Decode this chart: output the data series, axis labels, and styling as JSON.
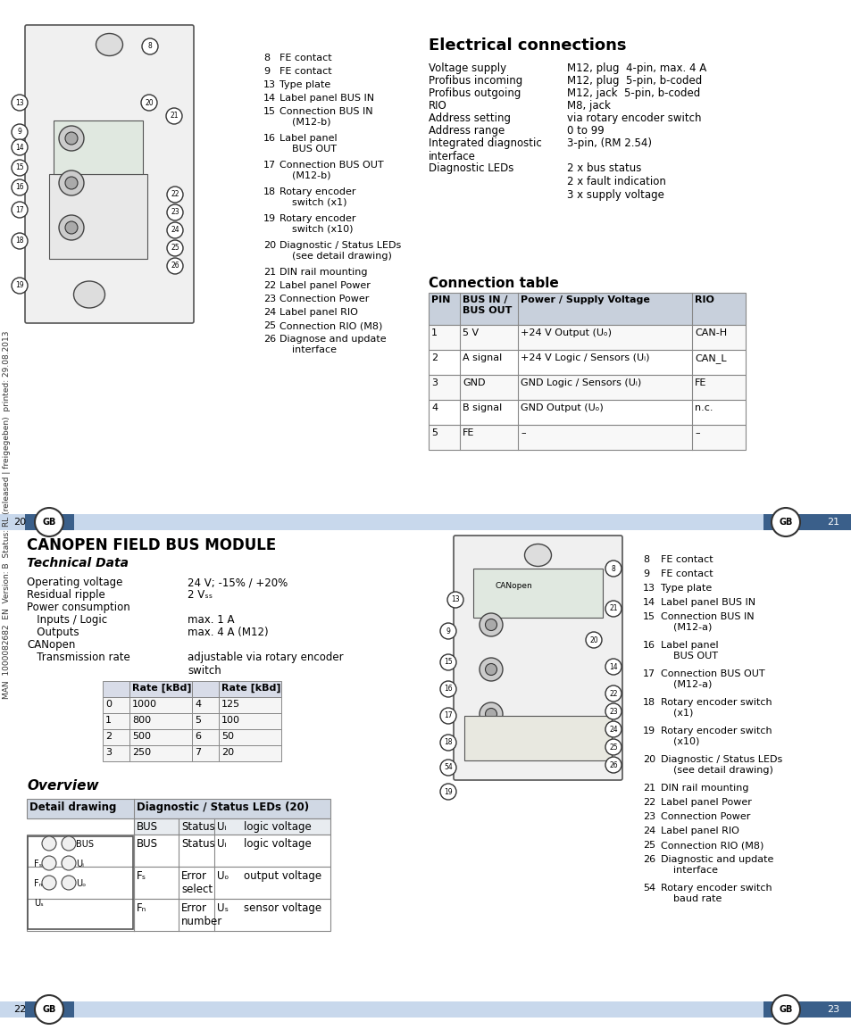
{
  "page_bg": "#ffffff",
  "divider_color": "#b8c8e0",
  "divider_dark": "#4a6fa5",
  "text_color": "#000000",
  "table_header_bg": "#d0d8e8",
  "table_bg": "#ffffff",
  "table_border": "#888888",
  "title_top": "Electrical connections",
  "elec_rows": [
    [
      "Voltage supply",
      "M12, plug  4-pin, max. 4 A"
    ],
    [
      "Profibus incoming",
      "M12, plug  5-pin, b-coded"
    ],
    [
      "Profibus outgoing",
      "M12, jack  5-pin, b-coded"
    ],
    [
      "RIO",
      "M8, jack"
    ],
    [
      "Address setting",
      "via rotary encoder switch"
    ],
    [
      "Address range",
      "0 to 99"
    ],
    [
      "Integrated diagnostic\ninterface",
      "3-pin, (RM 2.54)"
    ],
    [
      "Diagnostic LEDs",
      "2 x bus status\n2 x fault indication\n3 x supply voltage"
    ]
  ],
  "conn_title": "Connection table",
  "conn_headers": [
    "PIN",
    "BUS IN /\nBUS OUT",
    "Power / Supply Voltage",
    "RIO"
  ],
  "conn_rows": [
    [
      "1",
      "5 V",
      "+24 V Output (Uₒ)",
      "CAN-H"
    ],
    [
      "2",
      "A signal",
      "+24 V Logic / Sensors (Uᵢ)",
      "CAN_L"
    ],
    [
      "3",
      "GND",
      "GND Logic / Sensors (Uᵢ)",
      "FE"
    ],
    [
      "4",
      "B signal",
      "GND Output (Uₒ)",
      "n.c."
    ],
    [
      "5",
      "FE",
      "–",
      "–"
    ]
  ],
  "page_nums_top": [
    "20",
    "21"
  ],
  "canopen_title": "CANOPEN FIELD BUS MODULE",
  "tech_title": "Technical Data",
  "tech_rows": [
    [
      "Operating voltage",
      "24 V; -15% / +20%"
    ],
    [
      "Residual ripple",
      "2 Vₛₛ"
    ],
    [
      "Power consumption",
      ""
    ],
    [
      "   Inputs / Logic",
      "max. 1 A"
    ],
    [
      "   Outputs",
      "max. 4 A (M12)"
    ],
    [
      "CANopen",
      ""
    ],
    [
      "   Transmission rate",
      "adjustable via rotary encoder\nswitch"
    ]
  ],
  "rate_table": [
    [
      "",
      "Rate [kBd]",
      "",
      "Rate [kBd]"
    ],
    [
      "0",
      "1000",
      "4",
      "125"
    ],
    [
      "1",
      "800",
      "5",
      "100"
    ],
    [
      "2",
      "500",
      "6",
      "50"
    ],
    [
      "3",
      "250",
      "7",
      "20"
    ]
  ],
  "overview_title": "Overview",
  "overview_table_header": [
    "Detail drawing",
    "Diagnostic / Status LEDs (20)"
  ],
  "overview_table_rows": [
    [
      "BUS",
      "Status",
      "Uᵢ",
      "logic voltage"
    ],
    [
      "Fₛ",
      "Error\nselect",
      "Uₒ",
      "output voltage"
    ],
    [
      "Fₙ",
      "Error\nnumber",
      "Uₛ",
      "sensor voltage"
    ]
  ],
  "page_nums_bot": [
    "22",
    "23"
  ],
  "right_labels_top": [
    "8   FE contact",
    "9   FE contact",
    "13  Type plate",
    "14  Label panel BUS IN",
    "15  Connection BUS IN\n    (M12-b)",
    "16  Label panel\n    BUS OUT",
    "17  Connection BUS OUT\n    (M12-b)",
    "18  Rotary encoder\n    switch (x1)",
    "19  Rotary encoder\n    switch (x10)",
    "20  Diagnostic / Status LEDs\n    (see detail drawing)",
    "21  DIN rail mounting",
    "22  Label panel Power",
    "23  Connection Power",
    "24  Label panel RIO",
    "25  Connection RIO (M8)",
    "26  Diagnose and update\n    interface"
  ],
  "right_labels_bot": [
    "8   FE contact",
    "9   FE contact",
    "13  Type plate",
    "14  Label panel BUS IN",
    "15  Connection BUS IN\n    (M12-a)",
    "16  Label panel\n    BUS OUT",
    "17  Connection BUS OUT\n    (M12-a)",
    "18  Rotary encoder switch\n    (x1)",
    "19  Rotary encoder switch\n    (x10)",
    "20  Diagnostic / Status LEDs\n    (see detail drawing)",
    "21  DIN rail mounting",
    "22  Label panel Power",
    "23  Connection Power",
    "24  Label panel RIO",
    "25  Connection RIO (M8)",
    "26  Diagnostic and update\n    interface",
    "54  Rotary encoder switch\n    baud rate"
  ],
  "side_text": "MAN  1000082682  EN  Version: B  Status: RL (released | freigegeben)  printed: 29.08.2013"
}
